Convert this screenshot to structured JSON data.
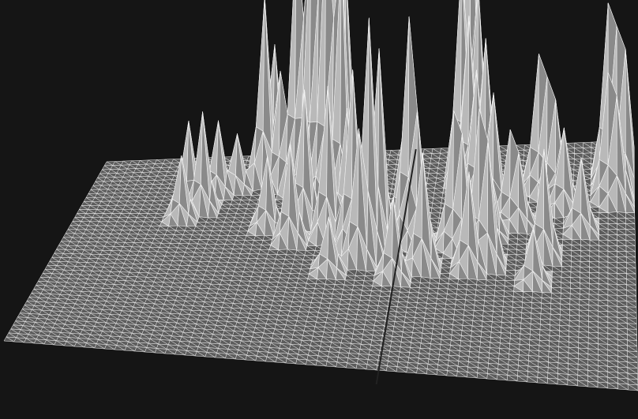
{
  "theme": {
    "background": "#151515",
    "mesh_line": "#f2f2f2",
    "face_lit": "#b9b9b9",
    "face_shade": "#8a8a8a",
    "base_face": "#5c5c5c"
  },
  "chart_data": {
    "type": "surface-wireframe",
    "grid": {
      "rows": 46,
      "cols": 64
    },
    "axes": "none",
    "grid_lines": "on",
    "legend": "none",
    "zlim": [
      0,
      1
    ],
    "panels": [
      {
        "name": "left",
        "peaks": [
          {
            "r": 6,
            "c": 20,
            "h": 0.42
          },
          {
            "r": 5,
            "c": 21,
            "h": 0.3
          },
          {
            "r": 7,
            "c": 22,
            "h": 0.26
          },
          {
            "r": 8,
            "c": 24,
            "h": 0.58
          },
          {
            "r": 9,
            "c": 25,
            "h": 0.4
          },
          {
            "r": 10,
            "c": 26,
            "h": 0.62
          },
          {
            "r": 11,
            "c": 27,
            "h": 0.48
          },
          {
            "r": 12,
            "c": 28,
            "h": 0.66
          },
          {
            "r": 13,
            "c": 29,
            "h": 0.44
          },
          {
            "r": 14,
            "c": 30,
            "h": 0.6
          },
          {
            "r": 11,
            "c": 29,
            "h": 0.7
          },
          {
            "r": 10,
            "c": 30,
            "h": 0.52
          },
          {
            "r": 9,
            "c": 28,
            "h": 0.36
          },
          {
            "r": 15,
            "c": 26,
            "h": 0.3
          },
          {
            "r": 18,
            "c": 29,
            "h": 0.34
          },
          {
            "r": 20,
            "c": 32,
            "h": 0.4
          },
          {
            "r": 22,
            "c": 34,
            "h": 0.54
          },
          {
            "r": 21,
            "c": 35,
            "h": 0.46
          },
          {
            "r": 23,
            "c": 33,
            "h": 0.3
          },
          {
            "r": 24,
            "c": 40,
            "h": 0.26
          },
          {
            "r": 12,
            "c": 14,
            "h": 0.22
          },
          {
            "r": 10,
            "c": 12,
            "h": 0.18
          },
          {
            "r": 8,
            "c": 15,
            "h": 0.16
          },
          {
            "r": 14,
            "c": 12,
            "h": 0.14
          },
          {
            "r": 7,
            "c": 17,
            "h": 0.12
          },
          {
            "r": 16,
            "c": 22,
            "h": 0.16
          },
          {
            "r": 19,
            "c": 25,
            "h": 0.22
          },
          {
            "r": 17,
            "c": 31,
            "h": 0.28
          },
          {
            "r": 26,
            "c": 37,
            "h": 0.18
          },
          {
            "r": 25,
            "c": 30,
            "h": 0.12
          }
        ]
      },
      {
        "name": "right",
        "peaks": [
          {
            "r": 6,
            "c": 44,
            "h": 0.78
          },
          {
            "r": 7,
            "c": 43,
            "h": 0.5
          },
          {
            "r": 8,
            "c": 45,
            "h": 0.46
          },
          {
            "r": 9,
            "c": 44,
            "h": 0.4
          },
          {
            "r": 10,
            "c": 46,
            "h": 0.36
          },
          {
            "r": 11,
            "c": 45,
            "h": 0.3
          },
          {
            "r": 12,
            "c": 47,
            "h": 0.26
          },
          {
            "r": 8,
            "c": 52,
            "h": 0.3
          },
          {
            "r": 9,
            "c": 53,
            "h": 0.26
          },
          {
            "r": 10,
            "c": 54,
            "h": 0.22
          },
          {
            "r": 7,
            "c": 60,
            "h": 0.4
          },
          {
            "r": 8,
            "c": 61,
            "h": 0.36
          },
          {
            "r": 9,
            "c": 62,
            "h": 0.32
          },
          {
            "r": 10,
            "c": 60,
            "h": 0.28
          },
          {
            "r": 11,
            "c": 61,
            "h": 0.24
          },
          {
            "r": 14,
            "c": 49,
            "h": 0.2
          },
          {
            "r": 15,
            "c": 50,
            "h": 0.16
          },
          {
            "r": 17,
            "c": 47,
            "h": 0.14
          },
          {
            "r": 19,
            "c": 43,
            "h": 0.3
          },
          {
            "r": 20,
            "c": 44,
            "h": 0.26
          },
          {
            "r": 22,
            "c": 46,
            "h": 0.34
          },
          {
            "r": 23,
            "c": 47,
            "h": 0.28
          },
          {
            "r": 24,
            "c": 45,
            "h": 0.22
          },
          {
            "r": 21,
            "c": 53,
            "h": 0.24
          },
          {
            "r": 18,
            "c": 38,
            "h": 0.5
          },
          {
            "r": 19,
            "c": 39,
            "h": 0.3
          },
          {
            "r": 15,
            "c": 37,
            "h": 0.2
          },
          {
            "r": 12,
            "c": 55,
            "h": 0.18
          },
          {
            "r": 16,
            "c": 57,
            "h": 0.16
          },
          {
            "r": 26,
            "c": 52,
            "h": 0.12
          }
        ]
      }
    ]
  }
}
